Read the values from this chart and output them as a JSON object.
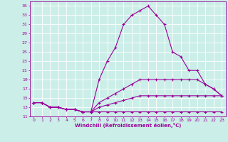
{
  "xlabel": "Windchill (Refroidissement éolien,°C)",
  "bg_color": "#cceee8",
  "grid_color": "#ffffff",
  "line_color": "#990099",
  "xlim": [
    -0.5,
    23.5
  ],
  "ylim": [
    11,
    36
  ],
  "xticks": [
    0,
    1,
    2,
    3,
    4,
    5,
    6,
    7,
    8,
    9,
    10,
    11,
    12,
    13,
    14,
    15,
    16,
    17,
    18,
    19,
    20,
    21,
    22,
    23
  ],
  "yticks": [
    11,
    13,
    15,
    17,
    19,
    21,
    23,
    25,
    27,
    29,
    31,
    33,
    35
  ],
  "lines": [
    {
      "x": [
        0,
        1,
        2,
        3,
        4,
        5,
        6,
        7,
        8,
        9,
        10,
        11,
        12,
        13,
        14,
        15,
        16,
        17,
        18,
        19,
        20,
        21,
        22,
        23
      ],
      "y": [
        14,
        14,
        13,
        13,
        12.5,
        12.5,
        12,
        12,
        12,
        12,
        12,
        12,
        12,
        12,
        12,
        12,
        12,
        12,
        12,
        12,
        12,
        12,
        12,
        12
      ]
    },
    {
      "x": [
        0,
        1,
        2,
        3,
        4,
        5,
        6,
        7,
        8,
        9,
        10,
        11,
        12,
        13,
        14,
        15,
        16,
        17,
        18,
        19,
        20,
        21,
        22,
        23
      ],
      "y": [
        14,
        14,
        13,
        13,
        12.5,
        12.5,
        12,
        12,
        13,
        13.5,
        14,
        14.5,
        15,
        15.5,
        15.5,
        15.5,
        15.5,
        15.5,
        15.5,
        15.5,
        15.5,
        15.5,
        15.5,
        15.5
      ]
    },
    {
      "x": [
        0,
        1,
        2,
        3,
        4,
        5,
        6,
        7,
        8,
        9,
        10,
        11,
        12,
        13,
        14,
        15,
        16,
        17,
        18,
        19,
        20,
        21,
        22,
        23
      ],
      "y": [
        14,
        14,
        13,
        13,
        12.5,
        12.5,
        12,
        12,
        14,
        15,
        16,
        17,
        18,
        19,
        19,
        19,
        19,
        19,
        19,
        19,
        19,
        18,
        17,
        15.5
      ]
    },
    {
      "x": [
        0,
        1,
        2,
        3,
        4,
        5,
        6,
        7,
        8,
        9,
        10,
        11,
        12,
        13,
        14,
        15,
        16,
        17,
        18,
        19,
        20,
        21,
        22,
        23
      ],
      "y": [
        14,
        14,
        13,
        13,
        12.5,
        12.5,
        12,
        12,
        19,
        23,
        26,
        31,
        33,
        34,
        35,
        33,
        31,
        25,
        24,
        21,
        21,
        18,
        17,
        15.5
      ]
    }
  ]
}
